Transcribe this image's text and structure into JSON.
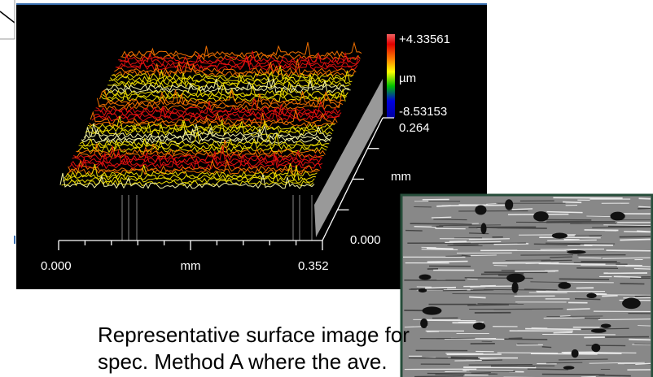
{
  "surface_plot": {
    "colorbar_max": "+4.33561",
    "colorbar_unit": "µm",
    "colorbar_min": "-8.53153",
    "y_axis_max": "0.264",
    "y_axis_unit": "mm",
    "y_axis_min": "0.000",
    "x_axis_min": "0.000",
    "x_axis_unit": "mm",
    "x_axis_max": "0.352"
  },
  "caption": {
    "lines": [
      "Representative surface image for",
      "spec. Method A  where the ave."
    ]
  }
}
